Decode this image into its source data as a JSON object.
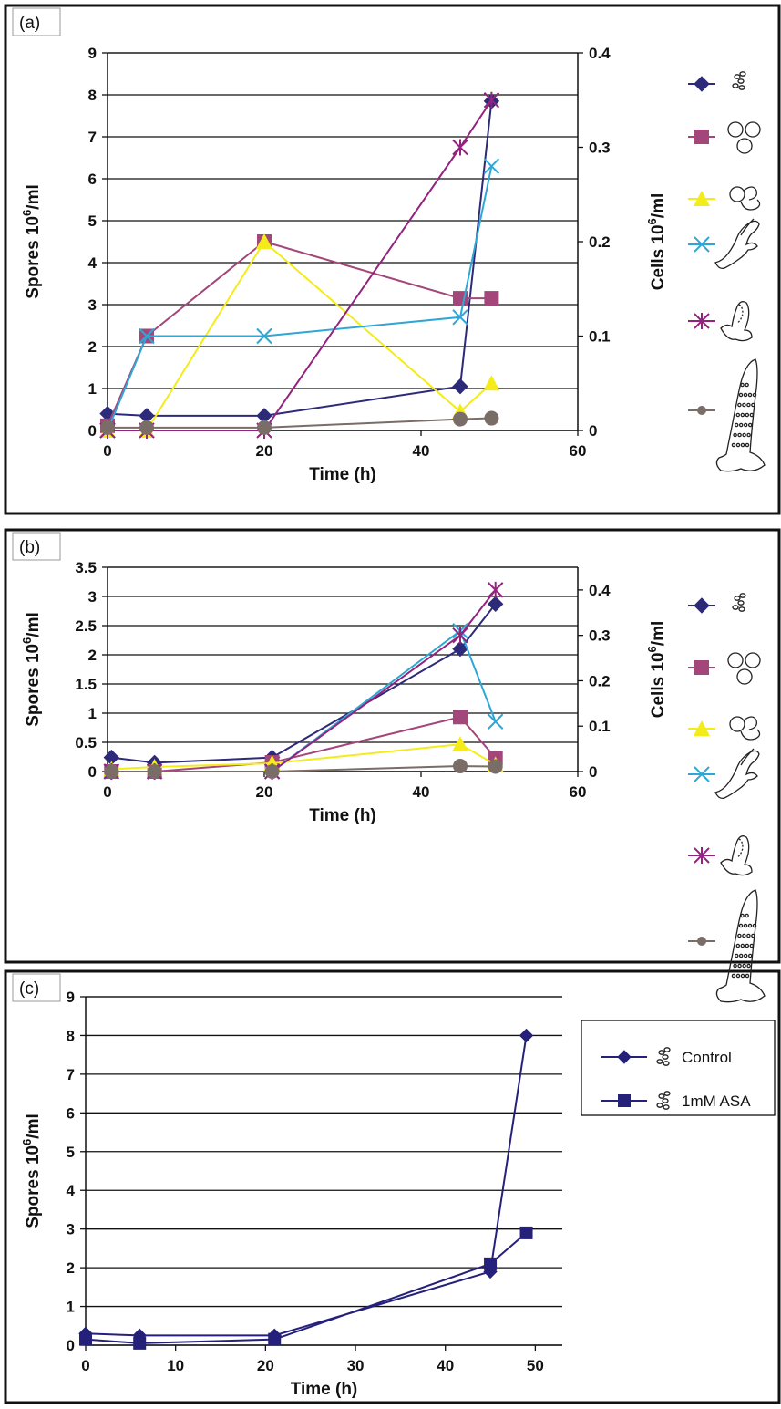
{
  "chart_data": [
    {
      "panel_label": "(a)",
      "type": "line",
      "xlabel": "Time (h)",
      "ylabel_left": "Spores 10⁶/ml",
      "ylabel_right": "Cells 10⁶/ml",
      "xlim": [
        0,
        60
      ],
      "xticks": [
        "0",
        "20",
        "40",
        "60"
      ],
      "ylim_left": [
        0,
        9
      ],
      "yticks_left": [
        "0",
        "1",
        "2",
        "3",
        "4",
        "5",
        "6",
        "7",
        "8",
        "9"
      ],
      "ylim_right": [
        0,
        0.4
      ],
      "yticks_right": [
        "0",
        "0.1",
        "0.2",
        "0.3",
        "0.4"
      ],
      "grid": true,
      "legend": "right, icons",
      "series": [
        {
          "icon": "spores-icon",
          "color": "#2e2a7a",
          "marker": "diamond",
          "axis": "left",
          "x": [
            0,
            5,
            20,
            45,
            49
          ],
          "y": [
            0.4,
            0.35,
            0.35,
            1.05,
            7.85
          ]
        },
        {
          "icon": "round-cells-icon",
          "color": "#a3467a",
          "marker": "square",
          "axis": "right",
          "x": [
            0,
            5,
            20,
            45,
            49
          ],
          "y": [
            0.005,
            0.1,
            0.2,
            0.14,
            0.14
          ]
        },
        {
          "icon": "germinating-cells-icon",
          "color": "#f4ec18",
          "marker": "triangle",
          "axis": "right",
          "x": [
            0,
            5,
            20,
            45,
            49
          ],
          "y": [
            0.0,
            0.0,
            0.2,
            0.02,
            0.05
          ]
        },
        {
          "icon": "branched-cells-icon",
          "color": "#2fa7d6",
          "marker": "x",
          "axis": "right",
          "x": [
            0,
            5,
            20,
            45,
            49
          ],
          "y": [
            0.0,
            0.1,
            0.1,
            0.12,
            0.28
          ]
        },
        {
          "icon": "sporangium-cells-icon",
          "color": "#94237f",
          "marker": "star",
          "axis": "right",
          "x": [
            0,
            5,
            20,
            45,
            49
          ],
          "y": [
            0.0,
            0.0,
            0.0,
            0.3,
            0.35
          ]
        },
        {
          "icon": "mature-sporangium-icon",
          "color": "#7a6c66",
          "marker": "circle",
          "axis": "right",
          "x": [
            0,
            5,
            20,
            45,
            49
          ],
          "y": [
            0.003,
            0.003,
            0.003,
            0.012,
            0.013
          ]
        }
      ]
    },
    {
      "panel_label": "(b)",
      "type": "line",
      "xlabel": "Time (h)",
      "ylabel_left": "Spores 10⁶/ml",
      "ylabel_right": "Cells 10⁶/ml",
      "xlim": [
        0,
        60
      ],
      "xticks": [
        "0",
        "20",
        "40",
        "60"
      ],
      "ylim_left": [
        0,
        3.5
      ],
      "yticks_left": [
        "0",
        "0.5",
        "1",
        "1.5",
        "2",
        "2.5",
        "3",
        "3.5"
      ],
      "ylim_right": [
        0,
        0.45
      ],
      "yticks_right": [
        "0",
        "0.1",
        "0.2",
        "0.3",
        "0.4"
      ],
      "grid": true,
      "legend": "right, icons",
      "series": [
        {
          "icon": "spores-icon",
          "color": "#2e2a7a",
          "marker": "diamond",
          "axis": "left",
          "x": [
            0.5,
            6,
            21,
            45,
            49.5
          ],
          "y": [
            0.24,
            0.15,
            0.24,
            2.1,
            2.87
          ]
        },
        {
          "icon": "round-cells-icon",
          "color": "#a3467a",
          "marker": "square",
          "axis": "right",
          "x": [
            0.5,
            6,
            21,
            45,
            49.5
          ],
          "y": [
            0.0,
            0.0,
            0.02,
            0.12,
            0.03
          ]
        },
        {
          "icon": "germinating-cells-icon",
          "color": "#f4ec18",
          "marker": "triangle",
          "axis": "right",
          "x": [
            0.5,
            6,
            21,
            45,
            49.5
          ],
          "y": [
            0.005,
            0.01,
            0.018,
            0.06,
            0.015
          ]
        },
        {
          "icon": "branched-cells-icon",
          "color": "#2fa7d6",
          "marker": "x",
          "axis": "right",
          "x": [
            0.5,
            6,
            21,
            45,
            49.5
          ],
          "y": [
            0.0,
            0.0,
            0.0,
            0.31,
            0.11
          ]
        },
        {
          "icon": "sporangium-cells-icon",
          "color": "#94237f",
          "marker": "star",
          "axis": "right",
          "x": [
            0.5,
            6,
            21,
            45,
            49.5
          ],
          "y": [
            0.0,
            0.0,
            0.0,
            0.3,
            0.4
          ]
        },
        {
          "icon": "mature-sporangium-icon",
          "color": "#7a6c66",
          "marker": "circle",
          "axis": "right",
          "x": [
            0.5,
            6,
            21,
            45,
            49.5
          ],
          "y": [
            0.0,
            0.0,
            0.0,
            0.012,
            0.011
          ]
        }
      ]
    },
    {
      "panel_label": "(c)",
      "type": "line",
      "xlabel": "Time (h)",
      "ylabel_left": "Spores 10⁶/ml",
      "xlim": [
        0,
        53
      ],
      "xticks": [
        "0",
        "10",
        "20",
        "30",
        "40",
        "50"
      ],
      "ylim_left": [
        0,
        9
      ],
      "yticks_left": [
        "0",
        "1",
        "2",
        "3",
        "4",
        "5",
        "6",
        "7",
        "8",
        "9"
      ],
      "grid": true,
      "legend": "top-right",
      "series": [
        {
          "name": "Control",
          "icon": "spores-icon",
          "color": "#25207a",
          "marker": "diamond",
          "axis": "left",
          "x": [
            0,
            6,
            21,
            45,
            49
          ],
          "y": [
            0.3,
            0.25,
            0.25,
            1.9,
            8.0
          ]
        },
        {
          "name": "1mM ASA",
          "icon": "spores-icon",
          "color": "#25207a",
          "marker": "square",
          "axis": "left",
          "x": [
            0,
            6,
            21,
            45,
            49
          ],
          "y": [
            0.15,
            0.05,
            0.15,
            2.1,
            2.9
          ]
        }
      ]
    }
  ]
}
